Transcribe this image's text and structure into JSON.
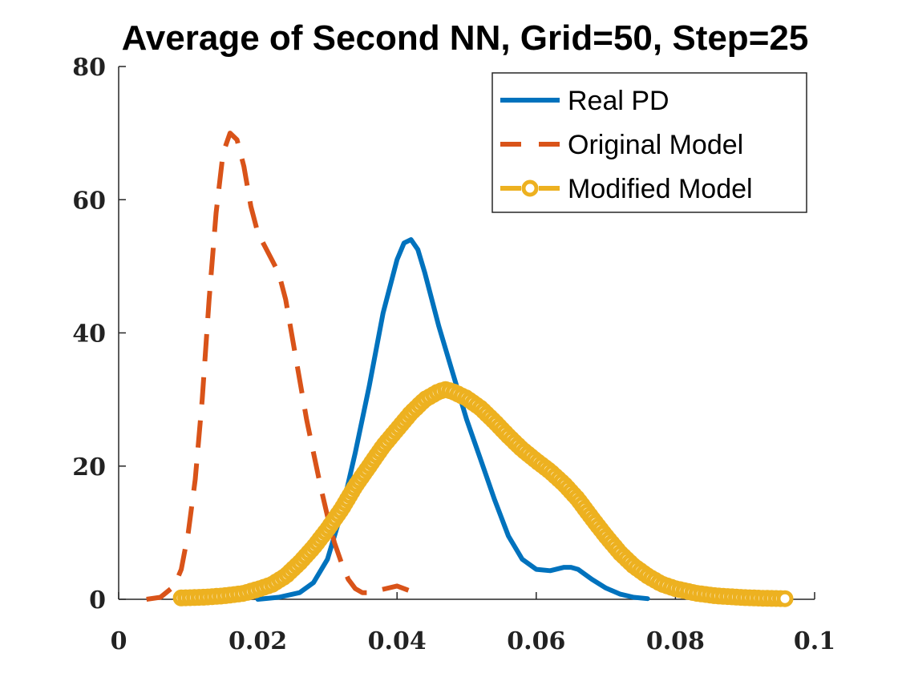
{
  "chart_data": {
    "type": "line",
    "title": "Average of Second NN, Grid=50, Step=25",
    "xlabel": "",
    "ylabel": "",
    "xlim": [
      0,
      0.1
    ],
    "ylim": [
      0,
      80
    ],
    "x_ticks": [
      0,
      0.02,
      0.04,
      0.06,
      0.08,
      0.1
    ],
    "x_tick_labels": [
      "0",
      "0.02",
      "0.04",
      "0.06",
      "0.08",
      "0.1"
    ],
    "y_ticks": [
      0,
      20,
      40,
      60,
      80
    ],
    "y_tick_labels": [
      "0",
      "20",
      "40",
      "60",
      "80"
    ],
    "grid": false,
    "legend_position": "top-right",
    "series": [
      {
        "name": "Real PD",
        "color": "#0072BD",
        "style": "solid",
        "points": [
          [
            0.02,
            0
          ],
          [
            0.023,
            0.3
          ],
          [
            0.026,
            1.0
          ],
          [
            0.028,
            2.5
          ],
          [
            0.03,
            6
          ],
          [
            0.032,
            13
          ],
          [
            0.034,
            22
          ],
          [
            0.036,
            32
          ],
          [
            0.038,
            43
          ],
          [
            0.04,
            51
          ],
          [
            0.041,
            53.5
          ],
          [
            0.042,
            54
          ],
          [
            0.043,
            52.5
          ],
          [
            0.044,
            49
          ],
          [
            0.046,
            41
          ],
          [
            0.048,
            34
          ],
          [
            0.05,
            27
          ],
          [
            0.052,
            21
          ],
          [
            0.054,
            15
          ],
          [
            0.056,
            9.5
          ],
          [
            0.058,
            6
          ],
          [
            0.06,
            4.5
          ],
          [
            0.062,
            4.3
          ],
          [
            0.064,
            4.8
          ],
          [
            0.065,
            4.8
          ],
          [
            0.066,
            4.5
          ],
          [
            0.068,
            3
          ],
          [
            0.07,
            1.7
          ],
          [
            0.072,
            0.8
          ],
          [
            0.074,
            0.3
          ],
          [
            0.076,
            0.1
          ]
        ]
      },
      {
        "name": "Original Model",
        "color": "#D95319",
        "style": "dashed",
        "points": [
          [
            0.004,
            0
          ],
          [
            0.006,
            0.3
          ],
          [
            0.008,
            2
          ],
          [
            0.009,
            4.5
          ],
          [
            0.01,
            10
          ],
          [
            0.011,
            18
          ],
          [
            0.012,
            30
          ],
          [
            0.013,
            45
          ],
          [
            0.014,
            58
          ],
          [
            0.015,
            67
          ],
          [
            0.016,
            70
          ],
          [
            0.017,
            69
          ],
          [
            0.018,
            65
          ],
          [
            0.019,
            59
          ],
          [
            0.02,
            55
          ],
          [
            0.021,
            53
          ],
          [
            0.022,
            51
          ],
          [
            0.023,
            49
          ],
          [
            0.024,
            45
          ],
          [
            0.025,
            39
          ],
          [
            0.026,
            33
          ],
          [
            0.027,
            27
          ],
          [
            0.028,
            22
          ],
          [
            0.029,
            17
          ],
          [
            0.03,
            12.5
          ],
          [
            0.031,
            8.5
          ],
          [
            0.032,
            5.5
          ],
          [
            0.033,
            3
          ],
          [
            0.034,
            1.6
          ],
          [
            0.035,
            1
          ],
          [
            0.036,
            1
          ],
          [
            0.038,
            1.5
          ],
          [
            0.04,
            2
          ],
          [
            0.042,
            1.2
          ],
          [
            0.043,
            0.5
          ]
        ]
      },
      {
        "name": "Modified Model",
        "color": "#EDB120",
        "style": "dash-circle",
        "points": [
          [
            0.009,
            0.2
          ],
          [
            0.012,
            0.3
          ],
          [
            0.015,
            0.5
          ],
          [
            0.018,
            0.9
          ],
          [
            0.02,
            1.5
          ],
          [
            0.022,
            2.2
          ],
          [
            0.024,
            3.5
          ],
          [
            0.026,
            5.5
          ],
          [
            0.028,
            7.8
          ],
          [
            0.03,
            10.5
          ],
          [
            0.032,
            13.5
          ],
          [
            0.034,
            17
          ],
          [
            0.036,
            20
          ],
          [
            0.038,
            23
          ],
          [
            0.04,
            25.5
          ],
          [
            0.042,
            28
          ],
          [
            0.044,
            30
          ],
          [
            0.046,
            31.2
          ],
          [
            0.047,
            31.5
          ],
          [
            0.048,
            31.2
          ],
          [
            0.05,
            30.2
          ],
          [
            0.052,
            28.7
          ],
          [
            0.054,
            26.7
          ],
          [
            0.056,
            24.5
          ],
          [
            0.058,
            22.5
          ],
          [
            0.06,
            20.8
          ],
          [
            0.062,
            19.2
          ],
          [
            0.064,
            17.3
          ],
          [
            0.066,
            15
          ],
          [
            0.068,
            12.2
          ],
          [
            0.07,
            9.5
          ],
          [
            0.072,
            7
          ],
          [
            0.074,
            5
          ],
          [
            0.076,
            3.5
          ],
          [
            0.078,
            2.3
          ],
          [
            0.08,
            1.6
          ],
          [
            0.083,
            0.9
          ],
          [
            0.086,
            0.5
          ],
          [
            0.09,
            0.25
          ],
          [
            0.093,
            0.15
          ],
          [
            0.096,
            0.1
          ]
        ]
      }
    ]
  }
}
